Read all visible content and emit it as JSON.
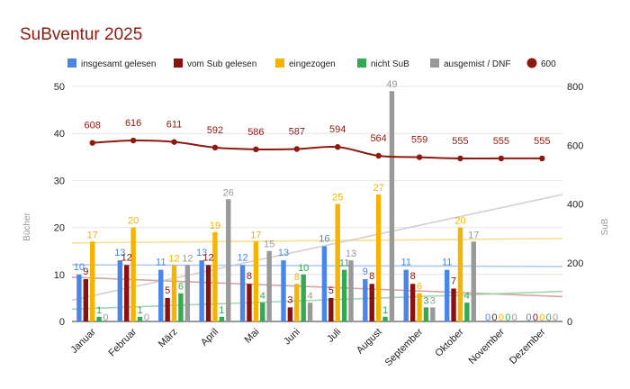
{
  "chart_data": {
    "type": "bar",
    "title": "SuBventur 2025",
    "categories": [
      "Januar",
      "Februar",
      "März",
      "April",
      "Mai",
      "Juni",
      "Juli",
      "August",
      "September",
      "Oktober",
      "November",
      "Dezember"
    ],
    "ylabel": "Bücher",
    "y2label": "SuB",
    "ylim": [
      0,
      50
    ],
    "y2lim": [
      0,
      800
    ],
    "yticks": [
      0,
      10,
      20,
      30,
      40,
      50
    ],
    "y2ticks": [
      0,
      200,
      400,
      600,
      800
    ],
    "grid": true,
    "legend_position": "top",
    "series": [
      {
        "name": "insgesamt gelesen",
        "color": "#4a86e8",
        "trend_color": "#a8c4f2",
        "values": [
          10,
          13,
          11,
          13,
          12,
          13,
          16,
          9,
          11,
          11,
          0,
          0
        ]
      },
      {
        "name": "vom Sub gelesen",
        "color": "#8b1010",
        "trend_color": "#d39a9a",
        "values": [
          9,
          12,
          5,
          12,
          8,
          3,
          5,
          8,
          8,
          7,
          0,
          0
        ]
      },
      {
        "name": "eingezogen",
        "color": "#f4b400",
        "trend_color": "#f8dc86",
        "values": [
          17,
          20,
          12,
          19,
          17,
          8,
          25,
          27,
          6,
          20,
          0,
          0
        ]
      },
      {
        "name": "nicht SuB",
        "color": "#34a853",
        "trend_color": "#98d4a8",
        "values": [
          1,
          1,
          6,
          1,
          4,
          10,
          11,
          1,
          3,
          4,
          0,
          0
        ]
      },
      {
        "name": "ausgemist / DNF",
        "color": "#999999",
        "trend_color": "#cccccc",
        "values": [
          0,
          0,
          12,
          26,
          15,
          4,
          13,
          49,
          3,
          17,
          0,
          0
        ]
      }
    ],
    "line_series": {
      "name": "600",
      "color": "#8c1a11",
      "axis": "right",
      "values": [
        608,
        616,
        611,
        592,
        586,
        587,
        594,
        564,
        559,
        555,
        555,
        555
      ]
    }
  }
}
